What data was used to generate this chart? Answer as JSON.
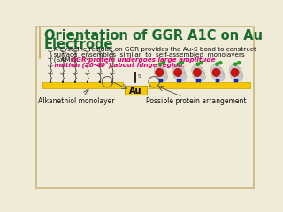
{
  "title_line1": "Orientation of GGR A1C on Au",
  "title_line2": "Electrode",
  "title_color": "#1a6b2e",
  "title_fontsize": 10.5,
  "bg_color": "#f0ead8",
  "body_text_line1": "   A cysteine residue on GGR provides the Au-S bond to construct",
  "body_text_line2": "   surface  ensembles  similar  to  self-assembled  monolayers",
  "body_text_line3_black": "   (SAMs). ",
  "body_text_color": "#111111",
  "body_fontsize": 5.2,
  "highlight_line1": "GGR protein undergoes large amplitude",
  "highlight_line2": "motion (20-40°) about hinge region.",
  "highlight_color": "#dd0077",
  "label_left": "Alkanethiol monolayer",
  "label_center": "Au",
  "label_right": "Possible protein arrangement",
  "label_fontsize": 5.5,
  "au_box_color": "#f5c800",
  "gold_bar_color": "#f5c800",
  "gold_bar_edge": "#c8a000",
  "border_color": "#c8b878",
  "chain_color": "#222222",
  "sulfur_color": "#333333"
}
